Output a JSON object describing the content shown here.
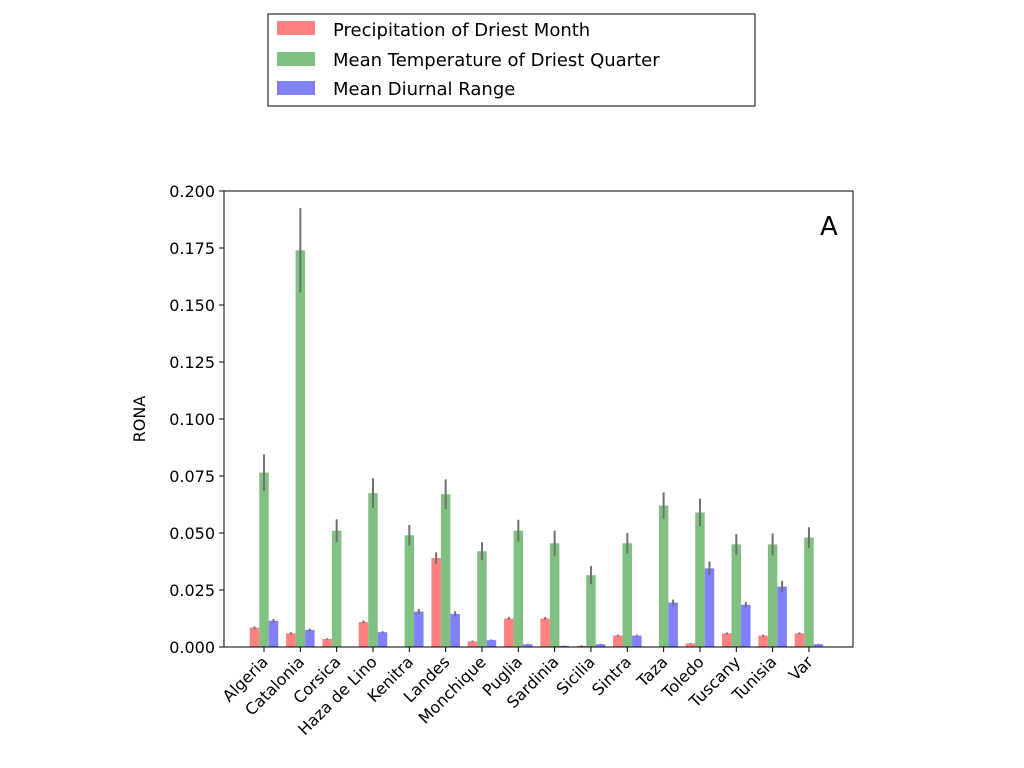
{
  "chart_data": {
    "type": "bar",
    "panel_label": "A",
    "xlabel": "",
    "ylabel": "RONA",
    "ylim": [
      0,
      0.2
    ],
    "yticks": [
      0.0,
      0.025,
      0.05,
      0.075,
      0.1,
      0.125,
      0.15,
      0.175,
      0.2
    ],
    "ytick_labels": [
      "0.000",
      "0.025",
      "0.050",
      "0.075",
      "0.100",
      "0.125",
      "0.150",
      "0.175",
      "0.200"
    ],
    "grid": false,
    "legend_position": "top-center, above plot",
    "categories": [
      "Algeria",
      "Catalonia",
      "Corsica",
      "Haza de Lino",
      "Kenitra",
      "Landes",
      "Monchique",
      "Puglia",
      "Sardinia",
      "Sicilia",
      "Sintra",
      "Taza",
      "Toledo",
      "Tuscany",
      "Tunisia",
      "Var"
    ],
    "series": [
      {
        "name": "Precipitation of Driest Month",
        "color": "#ff8080",
        "values": [
          0.0085,
          0.006,
          0.0035,
          0.011,
          0.0,
          0.039,
          0.0025,
          0.0125,
          0.0125,
          0.0005,
          0.005,
          0.0,
          0.0015,
          0.006,
          0.005,
          0.006
        ],
        "errors": [
          0.0005,
          0.0005,
          0.0003,
          0.0006,
          0.0,
          0.0025,
          0.0003,
          0.0006,
          0.0006,
          0.0002,
          0.0004,
          0.0,
          0.0002,
          0.0004,
          0.0004,
          0.0004
        ]
      },
      {
        "name": "Mean Temperature of Driest Quarter",
        "color": "#80c080",
        "values": [
          0.0765,
          0.174,
          0.051,
          0.0675,
          0.049,
          0.067,
          0.042,
          0.051,
          0.0455,
          0.0315,
          0.0455,
          0.062,
          0.059,
          0.045,
          0.045,
          0.048
        ],
        "errors": [
          0.008,
          0.0185,
          0.005,
          0.0065,
          0.0045,
          0.0065,
          0.004,
          0.0048,
          0.0055,
          0.004,
          0.0045,
          0.0058,
          0.006,
          0.0045,
          0.0048,
          0.0045
        ]
      },
      {
        "name": "Mean Diurnal Range",
        "color": "#8080ff",
        "values": [
          0.0115,
          0.0075,
          0.0,
          0.0065,
          0.0155,
          0.0145,
          0.003,
          0.0012,
          0.0005,
          0.0012,
          0.005,
          0.0195,
          0.0345,
          0.0185,
          0.0265,
          0.0012
        ],
        "errors": [
          0.0008,
          0.0005,
          0.0,
          0.0004,
          0.0012,
          0.0012,
          0.0003,
          0.0002,
          0.0001,
          0.0002,
          0.0004,
          0.0013,
          0.003,
          0.0013,
          0.0025,
          0.0002
        ]
      }
    ]
  }
}
